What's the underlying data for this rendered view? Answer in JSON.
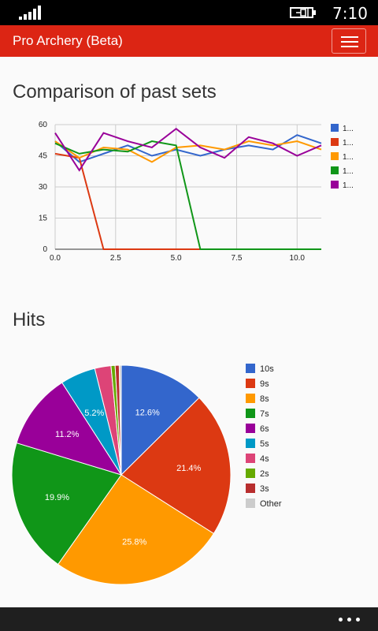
{
  "status": {
    "time": "7:10"
  },
  "app": {
    "title": "Pro Archery (Beta)"
  },
  "icons": {
    "menu": "hamburger-menu-icon",
    "more": "more-dots-icon",
    "signal": "signal-bars-icon",
    "battery": "battery-charging-icon"
  },
  "chart_data": [
    {
      "type": "line",
      "title": "Comparison of past sets",
      "xlim": [
        0,
        11
      ],
      "ylim": [
        0,
        60
      ],
      "xticks": [
        "0.0",
        "2.5",
        "5.0",
        "7.5",
        "10.0"
      ],
      "yticks": [
        "0",
        "15",
        "30",
        "45",
        "60"
      ],
      "grid": true,
      "legend": "right",
      "series": [
        {
          "name": "1...",
          "color": "#3366cc",
          "x": [
            0,
            1,
            2,
            3,
            4,
            5,
            6,
            7,
            8,
            9,
            10,
            11
          ],
          "values": [
            52,
            42,
            46,
            50,
            45,
            48,
            45,
            48,
            50,
            48,
            55,
            51
          ]
        },
        {
          "name": "1...",
          "color": "#dc3912",
          "x": [
            0,
            1,
            2,
            3,
            4,
            5,
            6,
            7,
            8,
            9,
            10,
            11
          ],
          "values": [
            46,
            44,
            0,
            0,
            0,
            0,
            0,
            0,
            0,
            0,
            0,
            0
          ]
        },
        {
          "name": "1...",
          "color": "#ff9900",
          "x": [
            0,
            1,
            2,
            3,
            4,
            5,
            6,
            7,
            8,
            9,
            10,
            11
          ],
          "values": [
            52,
            44,
            49,
            48,
            42,
            49,
            50,
            48,
            52,
            50,
            52,
            48
          ]
        },
        {
          "name": "1...",
          "color": "#109618",
          "x": [
            0,
            1,
            2,
            3,
            4,
            5,
            6,
            7,
            8,
            9,
            10,
            11
          ],
          "values": [
            51,
            46,
            48,
            47,
            52,
            50,
            0,
            0,
            0,
            0,
            0,
            0
          ]
        },
        {
          "name": "1...",
          "color": "#990099",
          "x": [
            0,
            1,
            2,
            3,
            4,
            5,
            6,
            7,
            8,
            9,
            10,
            11
          ],
          "values": [
            56,
            38,
            56,
            52,
            49,
            58,
            49,
            44,
            54,
            51,
            45,
            50
          ]
        }
      ]
    },
    {
      "type": "pie",
      "title": "Hits",
      "legend": "right",
      "slices": [
        {
          "name": "10s",
          "value": 12.6,
          "label": "12.6%",
          "color": "#3366cc"
        },
        {
          "name": "9s",
          "value": 21.4,
          "label": "21.4%",
          "color": "#dc3912"
        },
        {
          "name": "8s",
          "value": 25.8,
          "label": "25.8%",
          "color": "#ff9900"
        },
        {
          "name": "7s",
          "value": 19.9,
          "label": "19.9%",
          "color": "#109618"
        },
        {
          "name": "6s",
          "value": 11.2,
          "label": "11.2%",
          "color": "#990099"
        },
        {
          "name": "5s",
          "value": 5.2,
          "label": "5.2%",
          "color": "#0099c6"
        },
        {
          "name": "4s",
          "value": 2.4,
          "label": "",
          "color": "#dd4477"
        },
        {
          "name": "2s",
          "value": 0.6,
          "label": "",
          "color": "#66aa00"
        },
        {
          "name": "3s",
          "value": 0.6,
          "label": "",
          "color": "#b82e2e"
        },
        {
          "name": "Other",
          "value": 0.3,
          "label": "",
          "color": "#cccccc"
        }
      ]
    }
  ]
}
